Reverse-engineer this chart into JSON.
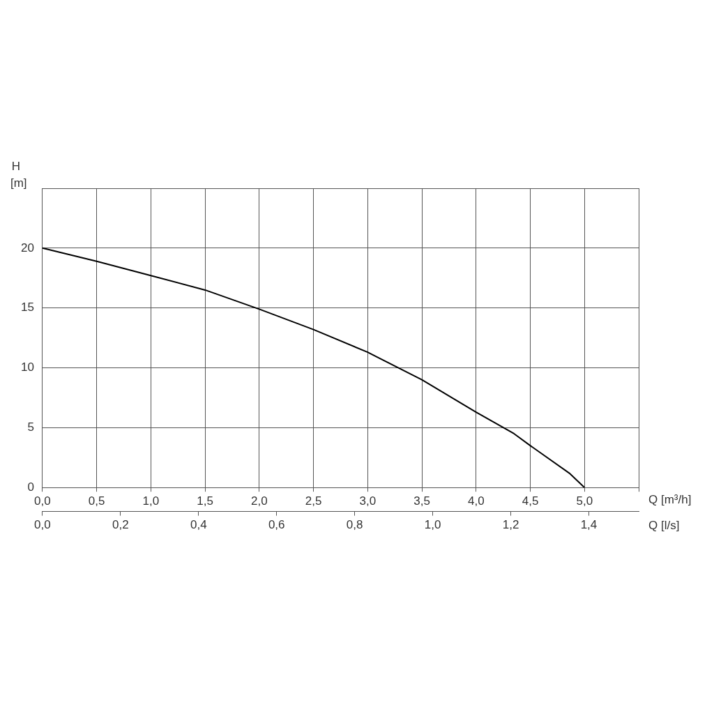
{
  "chart_data": {
    "type": "line",
    "xlabel": "Q [m³/h]",
    "ylabel": "H [m]",
    "x2label": "Q [l/s]",
    "x": [
      0,
      0.5,
      1.0,
      1.5,
      2.0,
      2.5,
      3.0,
      3.5,
      4.0,
      4.35,
      4.5,
      4.86,
      5.0
    ],
    "series": [
      {
        "color": "#000000",
        "values": [
          20,
          18.9,
          17.7,
          16.5,
          14.9,
          13.2,
          11.3,
          9.0,
          6.3,
          4.5,
          3.5,
          1.2,
          0
        ]
      }
    ],
    "xlim": [
      0,
      5.5
    ],
    "xticks": [
      {
        "value": 0,
        "label": "0,0"
      },
      {
        "value": 0.5,
        "label": "0,5"
      },
      {
        "value": 1,
        "label": "1,0"
      },
      {
        "value": 1.5,
        "label": "1,5"
      },
      {
        "value": 2,
        "label": "2,0"
      },
      {
        "value": 2.5,
        "label": "2,5"
      },
      {
        "value": 3,
        "label": "3,0"
      },
      {
        "value": 3.5,
        "label": "3,5"
      },
      {
        "value": 4,
        "label": "4,0"
      },
      {
        "value": 4.5,
        "label": "4,5"
      },
      {
        "value": 5,
        "label": "5,0"
      },
      {
        "value": 5.5,
        "label": null
      }
    ],
    "x2lim": [
      0,
      1.5278
    ],
    "x2ticks": [
      {
        "value": 0,
        "label": "0,0"
      },
      {
        "value": 0.2,
        "label": "0,2"
      },
      {
        "value": 0.4,
        "label": "0,4"
      },
      {
        "value": 0.6,
        "label": "0,6"
      },
      {
        "value": 0.8,
        "label": "0,8"
      },
      {
        "value": 1.0,
        "label": "1,0"
      },
      {
        "value": 1.2,
        "label": "1,2"
      },
      {
        "value": 1.4,
        "label": "1,4"
      }
    ],
    "ylim": [
      0,
      25
    ],
    "yticks": [
      0,
      5,
      10,
      15,
      20,
      {
        "value": 25,
        "label": null
      }
    ],
    "grid": true,
    "legend": false,
    "marker": "none",
    "line_style": "solid"
  }
}
